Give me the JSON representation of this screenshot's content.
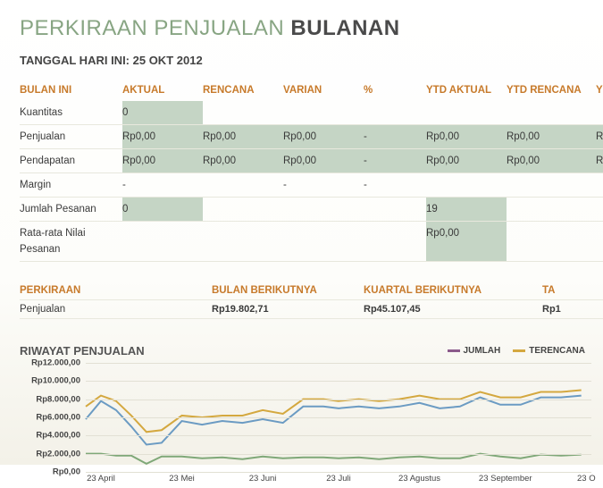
{
  "title": {
    "part1": "PERKIRAAN PENJUALAN",
    "part2": "BULANAN"
  },
  "date_label": "TANGGAL HARI INI: 25 OKT 2012",
  "table": {
    "headers": [
      "BULAN INI",
      "AKTUAL",
      "RENCANA",
      "VARIAN",
      "%",
      "YTD AKTUAL",
      "YTD RENCANA",
      "Y"
    ],
    "rows": [
      {
        "label": "Kuantitas",
        "cells": [
          "0",
          "",
          "",
          "",
          "",
          "",
          ""
        ],
        "shade": [
          0
        ]
      },
      {
        "label": "Penjualan",
        "cells": [
          "Rp0,00",
          "Rp0,00",
          "Rp0,00",
          "-",
          "Rp0,00",
          "Rp0,00",
          "Rp"
        ],
        "shade": [
          0,
          1,
          2,
          3,
          4,
          5,
          6
        ]
      },
      {
        "label": "Pendapatan",
        "cells": [
          "Rp0,00",
          "Rp0,00",
          "Rp0,00",
          "-",
          "Rp0,00",
          "Rp0,00",
          "Rp"
        ],
        "shade": [
          0,
          1,
          2,
          3,
          4,
          5,
          6
        ]
      },
      {
        "label": "Margin",
        "cells": [
          "-",
          "",
          "-",
          "-",
          "",
          "",
          ""
        ],
        "shade": []
      },
      {
        "label": "Jumlah Pesanan",
        "cells": [
          "0",
          "",
          "",
          "",
          "19",
          "",
          ""
        ],
        "shade": [
          0,
          4
        ]
      },
      {
        "label": "Rata-rata Nilai Pesanan",
        "cells": [
          "",
          "",
          "",
          "",
          "Rp0,00",
          "",
          ""
        ],
        "shade": [
          4
        ]
      }
    ]
  },
  "forecast": {
    "headers": [
      "PERKIRAAN",
      "BULAN BERIKUTNYA",
      "KUARTAL BERIKUTNYA",
      "TA"
    ],
    "row": {
      "label": "Penjualan",
      "cells": [
        "Rp19.802,71",
        "Rp45.107,45",
        "Rp1"
      ]
    }
  },
  "chart": {
    "title": "RIWAYAT PENJUALAN",
    "legend": [
      {
        "label": "JUMLAH",
        "color": "#8B5A8B"
      },
      {
        "label": "TERENCANA",
        "color": "#D4A83F"
      }
    ],
    "ylim": [
      0,
      12000
    ],
    "ytick_step": 2000,
    "ylabels": [
      "Rp0,00",
      "Rp2.000,00",
      "Rp4.000,00",
      "Rp6.000,00",
      "Rp8.000,00",
      "Rp10.000,00",
      "Rp12.000,00"
    ],
    "xlabels": [
      "23 April",
      "23 Mei",
      "23 Juni",
      "23 Juli",
      "23 Agustus",
      "23 September",
      "23 O"
    ],
    "xpositions": [
      0.03,
      0.19,
      0.35,
      0.5,
      0.66,
      0.83,
      0.99
    ],
    "series": [
      {
        "name": "jumlah",
        "color": "#6B9BC3",
        "width": 2,
        "points": [
          [
            0.0,
            5800
          ],
          [
            0.03,
            7800
          ],
          [
            0.06,
            6800
          ],
          [
            0.09,
            5000
          ],
          [
            0.12,
            3000
          ],
          [
            0.15,
            3200
          ],
          [
            0.19,
            5600
          ],
          [
            0.23,
            5200
          ],
          [
            0.27,
            5600
          ],
          [
            0.31,
            5400
          ],
          [
            0.35,
            5800
          ],
          [
            0.39,
            5400
          ],
          [
            0.43,
            7200
          ],
          [
            0.47,
            7200
          ],
          [
            0.5,
            7000
          ],
          [
            0.54,
            7200
          ],
          [
            0.58,
            7000
          ],
          [
            0.62,
            7200
          ],
          [
            0.66,
            7600
          ],
          [
            0.7,
            7000
          ],
          [
            0.74,
            7200
          ],
          [
            0.78,
            8200
          ],
          [
            0.82,
            7400
          ],
          [
            0.86,
            7400
          ],
          [
            0.9,
            8200
          ],
          [
            0.94,
            8200
          ],
          [
            0.98,
            8400
          ]
        ]
      },
      {
        "name": "terencana",
        "color": "#D4A83F",
        "width": 2,
        "points": [
          [
            0.0,
            7200
          ],
          [
            0.03,
            8400
          ],
          [
            0.06,
            7800
          ],
          [
            0.09,
            6200
          ],
          [
            0.12,
            4400
          ],
          [
            0.15,
            4600
          ],
          [
            0.19,
            6200
          ],
          [
            0.23,
            6000
          ],
          [
            0.27,
            6200
          ],
          [
            0.31,
            6200
          ],
          [
            0.35,
            6800
          ],
          [
            0.39,
            6400
          ],
          [
            0.43,
            8000
          ],
          [
            0.47,
            8000
          ],
          [
            0.5,
            7800
          ],
          [
            0.54,
            8000
          ],
          [
            0.58,
            7800
          ],
          [
            0.62,
            8000
          ],
          [
            0.66,
            8400
          ],
          [
            0.7,
            8000
          ],
          [
            0.74,
            8000
          ],
          [
            0.78,
            8800
          ],
          [
            0.82,
            8200
          ],
          [
            0.86,
            8200
          ],
          [
            0.9,
            8800
          ],
          [
            0.94,
            8800
          ],
          [
            0.98,
            9000
          ]
        ]
      },
      {
        "name": "series3",
        "color": "#7FA878",
        "width": 2,
        "points": [
          [
            0.0,
            2000
          ],
          [
            0.03,
            2000
          ],
          [
            0.06,
            1800
          ],
          [
            0.09,
            1800
          ],
          [
            0.12,
            900
          ],
          [
            0.15,
            1700
          ],
          [
            0.19,
            1700
          ],
          [
            0.23,
            1500
          ],
          [
            0.27,
            1600
          ],
          [
            0.31,
            1400
          ],
          [
            0.35,
            1700
          ],
          [
            0.39,
            1500
          ],
          [
            0.43,
            1600
          ],
          [
            0.47,
            1600
          ],
          [
            0.5,
            1500
          ],
          [
            0.54,
            1600
          ],
          [
            0.58,
            1400
          ],
          [
            0.62,
            1600
          ],
          [
            0.66,
            1700
          ],
          [
            0.7,
            1500
          ],
          [
            0.74,
            1500
          ],
          [
            0.78,
            2000
          ],
          [
            0.82,
            1700
          ],
          [
            0.86,
            1500
          ],
          [
            0.9,
            1900
          ],
          [
            0.94,
            1800
          ],
          [
            0.98,
            1900
          ]
        ]
      }
    ],
    "grid_color": "#e2e0d4"
  }
}
